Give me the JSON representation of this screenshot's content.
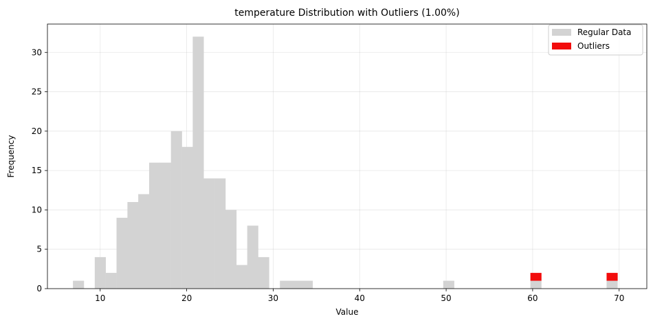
{
  "chart_data": {
    "type": "bar",
    "title": "temperature Distribution with Outliers (1.00%)",
    "xlabel": "Value",
    "ylabel": "Frequency",
    "xlim": [
      3.9,
      73.2
    ],
    "ylim": [
      0,
      33.6
    ],
    "xticks": [
      10,
      20,
      30,
      40,
      50,
      60,
      70
    ],
    "yticks": [
      0,
      5,
      10,
      15,
      20,
      25,
      30
    ],
    "grid": true,
    "legend_position": "top-right",
    "bin_width": 1.259,
    "series": [
      {
        "name": "Regular Data",
        "color": "#d3d3d3",
        "bins": [
          {
            "x": 6.85,
            "value": 1
          },
          {
            "x": 9.37,
            "value": 4
          },
          {
            "x": 10.63,
            "value": 2
          },
          {
            "x": 11.89,
            "value": 9
          },
          {
            "x": 13.15,
            "value": 11
          },
          {
            "x": 14.4,
            "value": 12
          },
          {
            "x": 15.66,
            "value": 16
          },
          {
            "x": 16.92,
            "value": 16
          },
          {
            "x": 18.18,
            "value": 20
          },
          {
            "x": 19.44,
            "value": 18
          },
          {
            "x": 20.7,
            "value": 32
          },
          {
            "x": 21.96,
            "value": 14
          },
          {
            "x": 23.22,
            "value": 14
          },
          {
            "x": 24.48,
            "value": 10
          },
          {
            "x": 25.74,
            "value": 3
          },
          {
            "x": 27.0,
            "value": 8
          },
          {
            "x": 28.26,
            "value": 4
          },
          {
            "x": 30.78,
            "value": 1
          },
          {
            "x": 32.04,
            "value": 1
          },
          {
            "x": 33.3,
            "value": 1
          },
          {
            "x": 49.66,
            "value": 1
          },
          {
            "x": 59.74,
            "value": 1
          },
          {
            "x": 68.55,
            "value": 1
          }
        ]
      },
      {
        "name": "Outliers",
        "color": "#f20c0c",
        "bins": [
          {
            "x": 59.74,
            "value": 1,
            "base": 1
          },
          {
            "x": 68.55,
            "value": 1,
            "base": 1
          }
        ]
      }
    ]
  }
}
